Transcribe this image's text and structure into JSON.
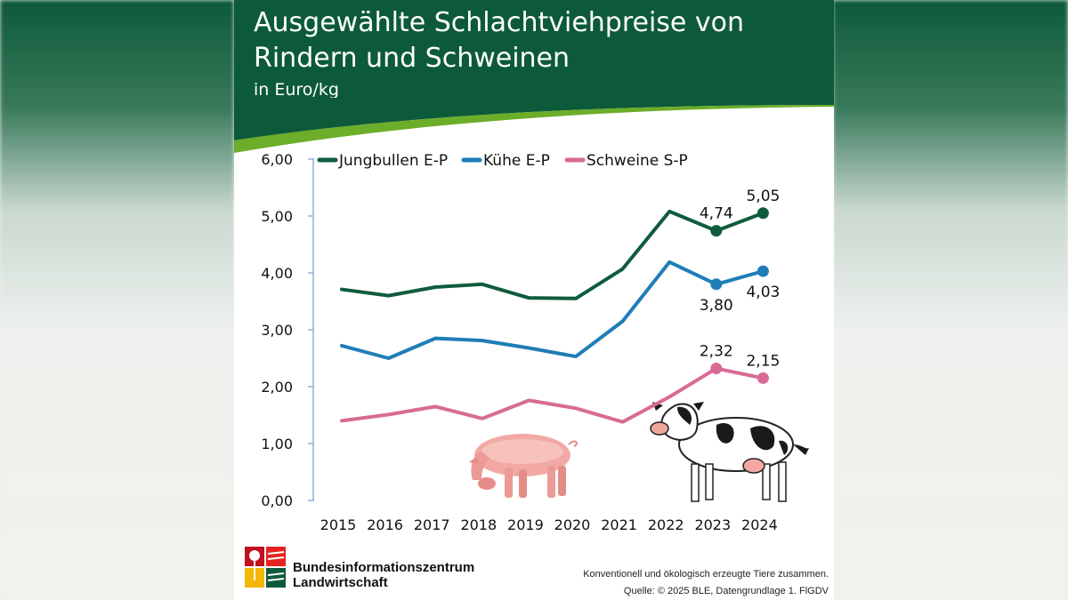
{
  "header": {
    "title": "Ausgewählte Schlachtviehpreise von Rindern und Schweinen",
    "subtitle": "in Euro/kg"
  },
  "colors": {
    "brand_green": "#0d5a3a",
    "jungbullen": "#0f5c3c",
    "kuehe": "#1f7db8",
    "schweine": "#d86b95",
    "swoosh": "#6cad2a"
  },
  "chart_data": {
    "type": "line",
    "title": "Ausgewählte Schlachtviehpreise von Rindern und Schweinen",
    "subtitle": "in Euro/kg",
    "x": [
      "2015",
      "2016",
      "2017",
      "2018",
      "2019",
      "2020",
      "2021",
      "2022",
      "2023",
      "2024"
    ],
    "ylim": [
      0,
      6
    ],
    "y_ticks": [
      "0,00",
      "1,00",
      "2,00",
      "3,00",
      "4,00",
      "5,00",
      "6,00"
    ],
    "legend_position": "top",
    "series": [
      {
        "name": "Jungbullen E-P",
        "color": "#0f5c3c",
        "values": [
          3.71,
          3.6,
          3.75,
          3.8,
          3.56,
          3.55,
          4.07,
          5.08,
          4.74,
          5.05
        ]
      },
      {
        "name": "Kühe E-P",
        "color": "#1f7db8",
        "values": [
          2.72,
          2.5,
          2.85,
          2.81,
          2.68,
          2.53,
          3.15,
          4.19,
          3.8,
          4.03
        ]
      },
      {
        "name": "Schweine S-P",
        "color": "#d86b95",
        "values": [
          1.4,
          1.51,
          1.65,
          1.44,
          1.76,
          1.62,
          1.38,
          1.82,
          2.32,
          2.15
        ]
      }
    ],
    "annotations": [
      {
        "series": 0,
        "index": 8,
        "label": "4,74",
        "pos": "above"
      },
      {
        "series": 0,
        "index": 9,
        "label": "5,05",
        "pos": "above"
      },
      {
        "series": 1,
        "index": 8,
        "label": "3,80",
        "pos": "below"
      },
      {
        "series": 1,
        "index": 9,
        "label": "4,03",
        "pos": "below"
      },
      {
        "series": 2,
        "index": 8,
        "label": "2,32",
        "pos": "above"
      },
      {
        "series": 2,
        "index": 9,
        "label": "2,15",
        "pos": "above"
      }
    ]
  },
  "footer": {
    "org_line1": "Bundesinformationszentrum",
    "org_line2": "Landwirtschaft",
    "note": "Konventionell und ökologisch erzeugte Tiere zusammen.",
    "source": "Quelle: © 2025 BLE, Datengrundlage 1. FlGDV"
  },
  "icons": [
    "ble-logo-icon",
    "pig-icon",
    "cow-icon"
  ]
}
